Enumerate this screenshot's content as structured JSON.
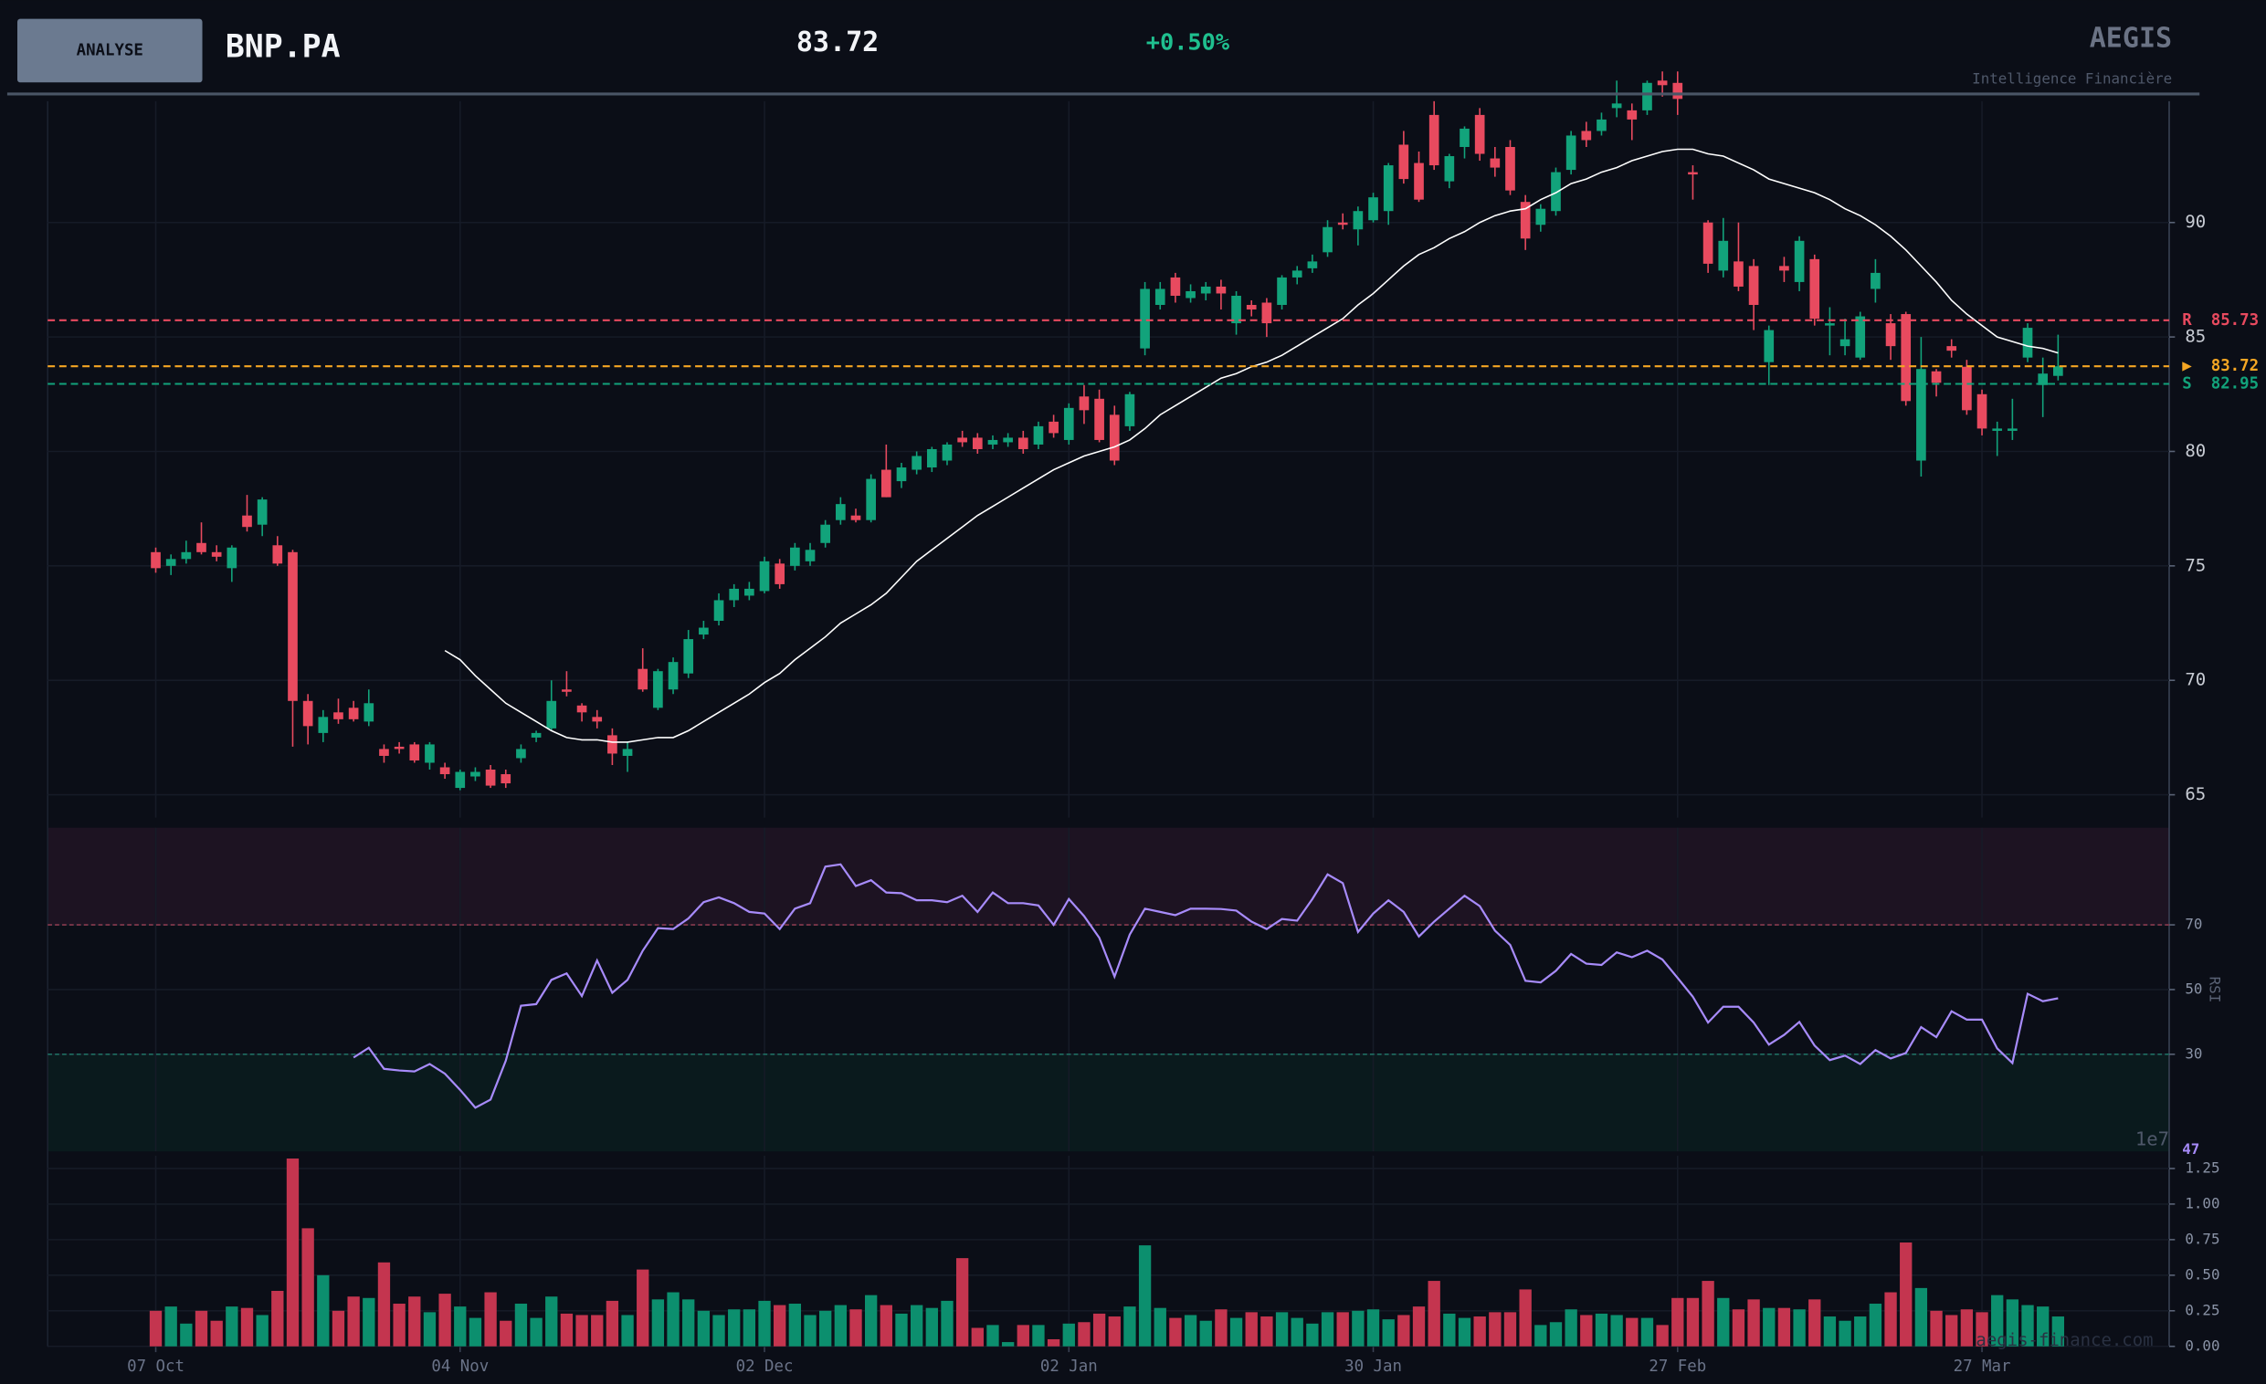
{
  "header": {
    "button": "ANALYSE",
    "symbol": "BNP.PA",
    "price": "83.72",
    "change": "+0.50%",
    "brand": "AEGIS",
    "tagline": "Intelligence Financière",
    "watermark": "aegis-finance.com"
  },
  "chart_data": [
    {
      "type": "candlestick",
      "up_color": "#12a37b",
      "down_color": "#e84a5f",
      "xlim": [
        -7.1,
        132.3
      ],
      "xticks": [
        {
          "value": 0,
          "label": "07 Oct"
        },
        {
          "value": 20,
          "label": "04 Nov"
        },
        {
          "value": 40,
          "label": "02 Dec"
        },
        {
          "value": 60,
          "label": "02 Jan"
        },
        {
          "value": 80,
          "label": "30 Jan"
        },
        {
          "value": 100,
          "label": "27 Feb"
        },
        {
          "value": 120,
          "label": "27 Mar"
        }
      ],
      "ylim": [
        64,
        95.3
      ],
      "yticks": [
        65,
        70,
        75,
        80,
        85,
        90
      ],
      "grid": true,
      "open": [
        75.6,
        75.0,
        75.3,
        76.0,
        75.6,
        74.9,
        77.2,
        76.8,
        75.9,
        75.6,
        69.1,
        67.7,
        68.6,
        68.8,
        68.2,
        67.0,
        67.1,
        67.2,
        66.4,
        66.2,
        65.3,
        65.8,
        66.1,
        65.9,
        66.6,
        67.5,
        67.9,
        69.6,
        68.9,
        68.4,
        67.6,
        66.7,
        70.5,
        68.8,
        69.6,
        70.3,
        72.0,
        72.6,
        73.5,
        73.7,
        73.9,
        75.1,
        75.0,
        75.2,
        76.0,
        77.0,
        77.2,
        77.0,
        79.2,
        78.7,
        79.2,
        79.3,
        79.6,
        80.6,
        80.6,
        80.3,
        80.4,
        80.6,
        80.3,
        81.3,
        80.5,
        82.4,
        82.3,
        81.6,
        81.1,
        84.5,
        86.4,
        87.6,
        86.7,
        86.9,
        87.2,
        85.6,
        86.4,
        86.5,
        86.4,
        87.6,
        88.0,
        88.7,
        90.0,
        89.7,
        90.1,
        90.5,
        93.4,
        92.6,
        94.7,
        91.8,
        93.3,
        94.7,
        92.8,
        93.3,
        90.9,
        89.9,
        90.5,
        92.3,
        94.0,
        94.0,
        95.0,
        94.9,
        94.9,
        96.2,
        96.1,
        92.2,
        90.0,
        87.9,
        88.3,
        88.1,
        83.9,
        88.1,
        87.4,
        88.4,
        85.5,
        84.6,
        84.1,
        87.1,
        85.6,
        86.0,
        79.6,
        83.5,
        84.6,
        83.7,
        82.5,
        80.9,
        80.9,
        84.1,
        82.9,
        83.3
      ],
      "high": [
        75.8,
        75.5,
        76.1,
        76.9,
        75.9,
        75.9,
        78.1,
        78.0,
        76.3,
        75.7,
        69.4,
        68.7,
        69.2,
        69.1,
        69.6,
        67.2,
        67.3,
        67.3,
        67.3,
        66.4,
        66.1,
        66.2,
        66.3,
        66.1,
        67.2,
        67.8,
        70.0,
        70.4,
        69.0,
        68.7,
        67.9,
        67.3,
        71.4,
        70.5,
        71.0,
        72.2,
        72.6,
        73.8,
        74.2,
        74.3,
        75.4,
        75.3,
        76.0,
        76.0,
        77.0,
        78.0,
        77.5,
        79.0,
        80.3,
        79.5,
        80.0,
        80.2,
        80.4,
        80.9,
        80.8,
        80.7,
        80.8,
        80.9,
        81.3,
        81.6,
        82.1,
        82.9,
        82.7,
        82.0,
        82.6,
        87.4,
        87.4,
        87.8,
        87.3,
        87.4,
        87.5,
        87.0,
        86.6,
        86.7,
        87.7,
        88.1,
        88.6,
        90.1,
        90.4,
        90.7,
        91.3,
        92.6,
        94.0,
        93.1,
        95.3,
        93.0,
        94.2,
        95.0,
        93.3,
        93.6,
        91.2,
        90.8,
        92.4,
        94.0,
        94.4,
        94.8,
        96.2,
        95.2,
        96.2,
        96.6,
        96.6,
        92.5,
        90.1,
        90.2,
        90.0,
        88.4,
        85.5,
        88.5,
        89.4,
        88.6,
        86.3,
        85.8,
        86.1,
        88.4,
        86.0,
        86.1,
        85.0,
        83.6,
        84.9,
        84.0,
        82.7,
        81.3,
        82.3,
        85.6,
        84.1,
        85.1
      ],
      "low": [
        74.7,
        74.6,
        75.1,
        75.5,
        75.2,
        74.3,
        76.5,
        76.3,
        75.0,
        67.1,
        67.2,
        67.3,
        68.1,
        68.2,
        68.0,
        66.4,
        66.8,
        66.4,
        66.1,
        65.7,
        65.2,
        65.6,
        65.3,
        65.3,
        66.4,
        67.3,
        67.8,
        69.3,
        68.2,
        67.9,
        66.3,
        66.0,
        69.5,
        68.7,
        69.4,
        70.1,
        71.8,
        72.4,
        73.2,
        73.5,
        73.8,
        74.0,
        74.8,
        75.0,
        75.8,
        76.8,
        76.9,
        76.9,
        78.0,
        78.4,
        79.0,
        79.1,
        79.4,
        80.2,
        79.9,
        80.1,
        80.2,
        79.9,
        80.1,
        80.6,
        80.3,
        81.2,
        80.4,
        79.4,
        80.9,
        84.2,
        86.2,
        86.5,
        86.5,
        86.6,
        86.2,
        85.1,
        85.9,
        85.0,
        86.2,
        87.3,
        87.8,
        88.5,
        89.7,
        89.0,
        90.0,
        89.9,
        91.7,
        90.9,
        92.3,
        91.5,
        92.8,
        92.7,
        92.0,
        91.2,
        88.8,
        89.6,
        90.3,
        92.1,
        93.3,
        93.8,
        94.6,
        93.6,
        94.7,
        95.5,
        94.7,
        91.0,
        87.8,
        87.6,
        87.0,
        85.3,
        82.9,
        87.4,
        87.0,
        85.5,
        84.2,
        84.2,
        84.0,
        86.5,
        84.0,
        82.0,
        78.9,
        82.4,
        84.1,
        81.6,
        80.7,
        79.8,
        80.5,
        83.9,
        81.5,
        83.1
      ],
      "close": [
        74.9,
        75.3,
        75.6,
        75.6,
        75.4,
        75.8,
        76.7,
        77.9,
        75.1,
        69.1,
        68.0,
        68.4,
        68.3,
        68.3,
        69.0,
        66.7,
        67.0,
        66.5,
        67.2,
        65.9,
        66.0,
        66.0,
        65.4,
        65.5,
        67.0,
        67.7,
        69.1,
        69.5,
        68.6,
        68.2,
        66.8,
        67.0,
        69.6,
        70.4,
        70.8,
        71.8,
        72.3,
        73.5,
        74.0,
        74.0,
        75.2,
        74.2,
        75.8,
        75.7,
        76.8,
        77.7,
        77.0,
        78.8,
        78.0,
        79.3,
        79.8,
        80.1,
        80.3,
        80.4,
        80.1,
        80.5,
        80.6,
        80.1,
        81.1,
        80.8,
        81.9,
        81.8,
        80.5,
        79.6,
        82.5,
        87.1,
        87.1,
        86.8,
        87.0,
        87.2,
        86.9,
        86.8,
        86.2,
        85.6,
        87.6,
        87.9,
        88.3,
        89.8,
        89.9,
        90.5,
        91.1,
        92.5,
        91.9,
        91.0,
        92.5,
        92.9,
        94.1,
        93.0,
        92.4,
        91.4,
        89.3,
        90.6,
        92.2,
        93.8,
        93.6,
        94.5,
        95.2,
        94.5,
        96.1,
        96.0,
        95.4,
        92.1,
        88.2,
        89.2,
        87.2,
        86.4,
        85.3,
        87.9,
        89.2,
        85.8,
        85.6,
        84.9,
        85.9,
        87.8,
        84.6,
        82.2,
        83.6,
        83.0,
        84.4,
        81.8,
        81.0,
        81.0,
        81.0,
        85.4,
        83.4,
        83.72
      ],
      "ma": {
        "color": "#ffffff",
        "values": [
          null,
          null,
          null,
          null,
          null,
          null,
          null,
          null,
          null,
          null,
          null,
          null,
          null,
          null,
          null,
          null,
          null,
          null,
          null,
          71.3,
          70.9,
          70.2,
          69.6,
          69.0,
          68.6,
          68.2,
          67.8,
          67.5,
          67.4,
          67.4,
          67.3,
          67.3,
          67.4,
          67.5,
          67.5,
          67.8,
          68.2,
          68.6,
          69.0,
          69.4,
          69.9,
          70.3,
          70.9,
          71.4,
          71.9,
          72.5,
          72.9,
          73.3,
          73.8,
          74.5,
          75.2,
          75.7,
          76.2,
          76.7,
          77.2,
          77.6,
          78.0,
          78.4,
          78.8,
          79.2,
          79.5,
          79.8,
          80.0,
          80.2,
          80.5,
          81.0,
          81.6,
          82.0,
          82.4,
          82.8,
          83.2,
          83.4,
          83.7,
          83.9,
          84.2,
          84.6,
          85.0,
          85.4,
          85.8,
          86.4,
          86.9,
          87.5,
          88.1,
          88.6,
          88.9,
          89.3,
          89.6,
          90.0,
          90.3,
          90.5,
          90.6,
          91.0,
          91.3,
          91.7,
          91.9,
          92.2,
          92.4,
          92.7,
          92.9,
          93.1,
          93.2,
          93.2,
          93.0,
          92.9,
          92.6,
          92.3,
          91.9,
          91.7,
          91.5,
          91.3,
          91.0,
          90.6,
          90.3,
          89.9,
          89.4,
          88.8,
          88.1,
          87.4,
          86.6,
          86.0,
          85.5,
          85.0,
          84.8,
          84.6,
          84.5,
          84.3
        ]
      },
      "levels": [
        {
          "label": "R",
          "value": 85.73,
          "color": "#e84a5f"
        },
        {
          "label": "▶",
          "value": 83.72,
          "color": "#f5a623"
        },
        {
          "label": "S",
          "value": 82.95,
          "color": "#12a37b"
        }
      ]
    },
    {
      "type": "line",
      "label": "RSI",
      "color": "#a78bfa",
      "ylim": [
        0,
        100
      ],
      "yticks": [
        30,
        50,
        70
      ],
      "overbought": 70,
      "oversold": 30,
      "last_label": "47",
      "values": [
        null,
        null,
        null,
        null,
        null,
        null,
        null,
        null,
        null,
        null,
        null,
        null,
        null,
        29,
        32,
        25.5,
        25,
        24.7,
        27,
        24,
        19,
        13.5,
        16,
        28,
        45,
        45.5,
        53,
        55,
        48,
        59,
        49,
        53,
        62,
        69,
        68.7,
        72,
        77,
        78.5,
        76.7,
        74,
        73.5,
        68.7,
        75,
        76.7,
        88,
        88.7,
        82,
        83.8,
        80,
        79.8,
        77.6,
        77.6,
        77,
        79,
        74,
        80,
        76.7,
        76.7,
        76,
        70,
        78,
        72.7,
        66,
        54,
        67,
        75,
        74,
        73,
        75,
        75,
        74.9,
        74.4,
        71,
        68.7,
        71.8,
        71.3,
        78,
        85.6,
        82.9,
        67.8,
        73.5,
        77.6,
        74,
        66.4,
        71,
        75,
        79,
        75.8,
        68.2,
        63.8,
        52.7,
        52.2,
        55.8,
        61,
        58,
        57.6,
        61.5,
        60,
        62,
        59.3,
        53.6,
        47.8,
        39.8,
        44.7,
        44.7,
        39.8,
        33,
        36,
        40,
        32.7,
        28.2,
        29.6,
        27,
        31.3,
        28.7,
        30.4,
        38.4,
        35.3,
        43.3,
        40.7,
        40.7,
        31.8,
        27.3,
        48.7,
        46.4,
        47.3
      ]
    },
    {
      "type": "bar",
      "offset_label": "1e7",
      "up_color": "#0c8f6e",
      "down_color": "#c4354f",
      "ylim": [
        0,
        1.34
      ],
      "yticks": [
        {
          "value": 0,
          "label": "0.00"
        },
        {
          "value": 0.25,
          "label": "0.25"
        },
        {
          "value": 0.5,
          "label": "0.50"
        },
        {
          "value": 0.75,
          "label": "0.75"
        },
        {
          "value": 1,
          "label": "1.00"
        },
        {
          "value": 1.25,
          "label": "1.25"
        }
      ],
      "values": [
        0.25,
        0.28,
        0.16,
        0.25,
        0.18,
        0.28,
        0.27,
        0.22,
        0.39,
        1.32,
        0.83,
        0.5,
        0.25,
        0.35,
        0.34,
        0.59,
        0.3,
        0.35,
        0.24,
        0.37,
        0.28,
        0.2,
        0.38,
        0.18,
        0.3,
        0.2,
        0.35,
        0.23,
        0.22,
        0.22,
        0.32,
        0.22,
        0.54,
        0.33,
        0.38,
        0.33,
        0.25,
        0.22,
        0.26,
        0.26,
        0.32,
        0.29,
        0.3,
        0.22,
        0.25,
        0.29,
        0.26,
        0.36,
        0.29,
        0.23,
        0.29,
        0.27,
        0.32,
        0.62,
        0.13,
        0.15,
        0.03,
        0.15,
        0.15,
        0.05,
        0.16,
        0.17,
        0.23,
        0.21,
        0.28,
        0.71,
        0.27,
        0.2,
        0.22,
        0.18,
        0.26,
        0.2,
        0.24,
        0.21,
        0.24,
        0.2,
        0.16,
        0.24,
        0.24,
        0.25,
        0.26,
        0.19,
        0.22,
        0.28,
        0.46,
        0.23,
        0.2,
        0.21,
        0.24,
        0.24,
        0.4,
        0.15,
        0.17,
        0.26,
        0.22,
        0.23,
        0.22,
        0.2,
        0.2,
        0.15,
        0.34,
        0.34,
        0.46,
        0.34,
        0.26,
        0.33,
        0.27,
        0.27,
        0.26,
        0.33,
        0.21,
        0.18,
        0.21,
        0.3,
        0.38,
        0.73,
        0.41,
        0.25,
        0.22,
        0.26,
        0.24,
        0.36,
        0.33,
        0.29,
        0.28,
        0.21
      ]
    }
  ]
}
